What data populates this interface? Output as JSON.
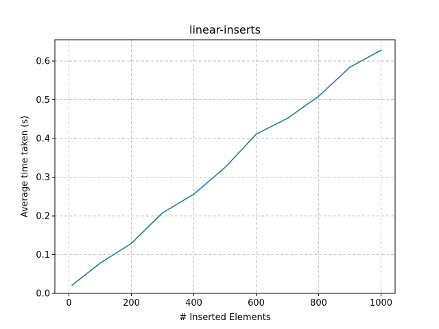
{
  "chart_data": {
    "type": "line",
    "title": "linear-inserts",
    "xlabel": "# Inserted Elements",
    "ylabel": "Average time taken (s)",
    "xlim": [
      -45,
      1045
    ],
    "ylim": [
      0,
      0.655
    ],
    "xticks": [
      0,
      200,
      400,
      600,
      800,
      1000
    ],
    "yticks": [
      0.0,
      0.1,
      0.2,
      0.3,
      0.4,
      0.5,
      0.6
    ],
    "xtick_labels": [
      "0",
      "200",
      "400",
      "600",
      "800",
      "1000"
    ],
    "ytick_labels": [
      "0.0",
      "0.1",
      "0.2",
      "0.3",
      "0.4",
      "0.5",
      "0.6"
    ],
    "grid": true,
    "series": [
      {
        "color": "#1f77b4",
        "x": [
          10,
          100,
          200,
          300,
          400,
          500,
          600,
          700,
          800,
          900,
          1000
        ],
        "y": [
          0.021,
          0.078,
          0.129,
          0.208,
          0.256,
          0.325,
          0.411,
          0.452,
          0.509,
          0.584,
          0.628
        ]
      }
    ]
  }
}
